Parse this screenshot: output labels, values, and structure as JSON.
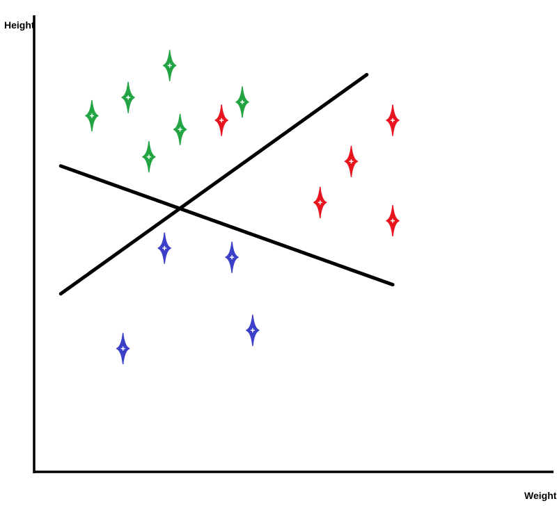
{
  "chart_data": {
    "type": "scatter",
    "title": "",
    "xlabel": "Weight",
    "ylabel": "Height",
    "grid": false,
    "ticks": false,
    "xlim": [
      0,
      100
    ],
    "ylim": [
      0,
      100
    ],
    "colors": {
      "green": "#22a442",
      "red": "#e8141e",
      "blue": "#3c40c8",
      "axis": "#000000",
      "line": "#000000"
    },
    "series": [
      {
        "color": "green",
        "points": [
          {
            "x": 11,
            "y": 78
          },
          {
            "x": 18,
            "y": 82
          },
          {
            "x": 26,
            "y": 89
          },
          {
            "x": 22,
            "y": 69
          },
          {
            "x": 28,
            "y": 75
          },
          {
            "x": 40,
            "y": 81
          }
        ]
      },
      {
        "color": "red",
        "points": [
          {
            "x": 36,
            "y": 77
          },
          {
            "x": 55,
            "y": 59
          },
          {
            "x": 69,
            "y": 77
          },
          {
            "x": 61,
            "y": 68
          },
          {
            "x": 69,
            "y": 55
          }
        ]
      },
      {
        "color": "blue",
        "points": [
          {
            "x": 25,
            "y": 49
          },
          {
            "x": 38,
            "y": 47
          },
          {
            "x": 17,
            "y": 27
          },
          {
            "x": 42,
            "y": 31
          }
        ]
      }
    ],
    "lines": [
      {
        "x1": 5,
        "y1": 39,
        "x2": 64,
        "y2": 87
      },
      {
        "x1": 5,
        "y1": 67,
        "x2": 69,
        "y2": 41
      }
    ]
  }
}
